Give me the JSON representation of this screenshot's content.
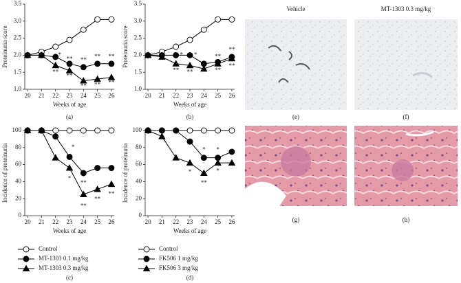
{
  "chart_data": [
    {
      "type": "line",
      "caption": "(a)",
      "y_label": "Proteinuria score",
      "x_label": "Weeks of age",
      "x": [
        20,
        21,
        22,
        23,
        24,
        25,
        26
      ],
      "xlim": [
        19.8,
        26.2
      ],
      "xticks": [
        20,
        21,
        22,
        23,
        24,
        25,
        26
      ],
      "ylim": [
        1.0,
        3.5
      ],
      "yticks": [
        {
          "value": 1.0,
          "label": "1.0"
        },
        {
          "value": 1.5,
          "label": "1.5"
        },
        {
          "value": 2.0,
          "label": "2.0"
        },
        {
          "value": 2.5,
          "label": "2.5"
        },
        {
          "value": 3.0,
          "label": "3.0"
        },
        {
          "value": 3.5,
          "label": "3.5"
        }
      ],
      "legend": false,
      "series": [
        {
          "marker": "open-circle",
          "color": "#000000",
          "values": [
            2.0,
            2.1,
            2.25,
            2.45,
            2.75,
            3.05,
            3.05
          ]
        },
        {
          "marker": "circle",
          "color": "#000000",
          "values": [
            2.0,
            2.0,
            1.95,
            1.75,
            1.65,
            1.75,
            1.75
          ]
        },
        {
          "marker": "triangle",
          "color": "#000000",
          "values": [
            2.0,
            2.0,
            1.7,
            1.55,
            1.25,
            1.3,
            1.35
          ]
        }
      ],
      "annotations": [
        {
          "text": "*",
          "x": 22.3,
          "y": 2.0
        },
        {
          "text": "**",
          "x": 22,
          "y": 1.5
        },
        {
          "text": "**",
          "x": 23,
          "y": 1.88
        },
        {
          "text": "**",
          "x": 23,
          "y": 1.38
        },
        {
          "text": "**",
          "x": 24,
          "y": 1.85
        },
        {
          "text": "**",
          "x": 24,
          "y": 1.08
        },
        {
          "text": "**",
          "x": 25,
          "y": 1.95
        },
        {
          "text": "**",
          "x": 25,
          "y": 1.12
        },
        {
          "text": "**",
          "x": 26,
          "y": 1.95
        },
        {
          "text": "**",
          "x": 26,
          "y": 1.18
        }
      ]
    },
    {
      "type": "line",
      "caption": "(b)",
      "y_label": "Proteinuria score",
      "x_label": "Weeks of age",
      "x": [
        20,
        21,
        22,
        23,
        24,
        25,
        26
      ],
      "xlim": [
        19.8,
        26.2
      ],
      "xticks": [
        20,
        21,
        22,
        23,
        24,
        25,
        26
      ],
      "ylim": [
        1.0,
        3.5
      ],
      "yticks": [
        {
          "value": 1.0,
          "label": "1.0"
        },
        {
          "value": 1.5,
          "label": "1.5"
        },
        {
          "value": 2.0,
          "label": "2.0"
        },
        {
          "value": 2.5,
          "label": "2.5"
        },
        {
          "value": 3.0,
          "label": "3.0"
        },
        {
          "value": 3.5,
          "label": "3.5"
        }
      ],
      "legend": false,
      "series": [
        {
          "marker": "open-circle",
          "color": "#000000",
          "values": [
            2.0,
            2.1,
            2.25,
            2.45,
            2.75,
            3.05,
            3.05
          ]
        },
        {
          "marker": "circle",
          "color": "#000000",
          "values": [
            2.0,
            2.0,
            2.0,
            2.0,
            1.75,
            1.8,
            1.95
          ]
        },
        {
          "marker": "triangle",
          "color": "#000000",
          "values": [
            2.0,
            1.95,
            1.75,
            1.7,
            1.6,
            1.75,
            1.9
          ]
        }
      ],
      "annotations": [
        {
          "text": "*",
          "x": 22.4,
          "y": 2.0
        },
        {
          "text": "**",
          "x": 22,
          "y": 1.55
        },
        {
          "text": "*",
          "x": 23.4,
          "y": 2.0
        },
        {
          "text": "**",
          "x": 23,
          "y": 1.5
        },
        {
          "text": "**",
          "x": 25,
          "y": 1.95
        },
        {
          "text": "**",
          "x": 25,
          "y": 1.55
        },
        {
          "text": "**",
          "x": 26,
          "y": 2.15
        },
        {
          "text": "**",
          "x": 26,
          "y": 1.68
        }
      ]
    },
    {
      "type": "line",
      "caption": "(c)",
      "y_label": "Incidence of proteinuria",
      "x_label": "Weeks of age",
      "x": [
        20,
        21,
        22,
        23,
        24,
        25,
        26
      ],
      "xlim": [
        19.8,
        26.2
      ],
      "xticks": [
        20,
        21,
        22,
        23,
        24,
        25,
        26
      ],
      "ylim": [
        0,
        100
      ],
      "yticks": [
        0,
        20,
        40,
        60,
        80,
        100
      ],
      "legend": true,
      "series": [
        {
          "name": "Control",
          "marker": "open-circle",
          "color": "#000000",
          "values": [
            100,
            100,
            100,
            100,
            100,
            100,
            100
          ]
        },
        {
          "name": "MT-1303 0.1 mg/kg",
          "marker": "circle",
          "color": "#000000",
          "values": [
            100,
            100,
            93,
            69,
            50,
            56,
            56
          ]
        },
        {
          "name": "MT-1303 0.3 mg/kg",
          "marker": "triangle",
          "color": "#000000",
          "values": [
            100,
            100,
            68,
            56,
            25,
            31,
            37
          ]
        }
      ],
      "annotations": [
        {
          "text": "*",
          "x": 23.25,
          "y": 80
        },
        {
          "text": "*",
          "x": 23,
          "y": 43
        },
        {
          "text": "**",
          "x": 24,
          "y": 38
        },
        {
          "text": "**",
          "x": 24,
          "y": 11
        },
        {
          "text": "**",
          "x": 25,
          "y": 19
        },
        {
          "text": "**",
          "x": 26,
          "y": 25
        }
      ]
    },
    {
      "type": "line",
      "caption": "(d)",
      "y_label": "Incidence of proteinuria",
      "x_label": "Weeks of age",
      "x": [
        20,
        21,
        22,
        23,
        24,
        25,
        26
      ],
      "xlim": [
        19.8,
        26.2
      ],
      "xticks": [
        20,
        21,
        22,
        23,
        24,
        25,
        26
      ],
      "ylim": [
        0,
        100
      ],
      "yticks": [
        0,
        20,
        40,
        60,
        80,
        100
      ],
      "legend": true,
      "series": [
        {
          "name": "Control",
          "marker": "open-circle",
          "color": "#000000",
          "values": [
            100,
            100,
            100,
            100,
            100,
            100,
            100
          ]
        },
        {
          "name": "FK506 1 mg/kg",
          "marker": "circle",
          "color": "#000000",
          "values": [
            100,
            100,
            100,
            87,
            68,
            68,
            75
          ]
        },
        {
          "name": "FK506 3 mg/kg",
          "marker": "triangle",
          "color": "#000000",
          "values": [
            100,
            93,
            68,
            62,
            50,
            62,
            62
          ]
        }
      ],
      "annotations": [
        {
          "text": "*",
          "x": 24,
          "y": 77
        },
        {
          "text": "*",
          "x": 25,
          "y": 77
        },
        {
          "text": "*",
          "x": 23,
          "y": 51
        },
        {
          "text": "**",
          "x": 24,
          "y": 38
        },
        {
          "text": "*",
          "x": 25,
          "y": 52
        }
      ]
    }
  ],
  "images": [
    {
      "label": "Vehicle",
      "caption": "(e)"
    },
    {
      "label": "MT-1303 0.3 mg/kg",
      "caption": "(f)"
    },
    {
      "caption": "(g)"
    },
    {
      "caption": "(h)"
    }
  ]
}
